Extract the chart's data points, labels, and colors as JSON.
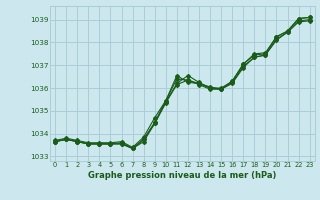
{
  "title": "Graphe pression niveau de la mer (hPa)",
  "bg_color": "#cce8ee",
  "grid_color": "#aacdd6",
  "line_color": "#1a5c1a",
  "xlim": [
    -0.5,
    23.5
  ],
  "ylim": [
    1032.8,
    1039.6
  ],
  "yticks": [
    1033,
    1034,
    1035,
    1036,
    1037,
    1038,
    1039
  ],
  "xticks": [
    0,
    1,
    2,
    3,
    4,
    5,
    6,
    7,
    8,
    9,
    10,
    11,
    12,
    13,
    14,
    15,
    16,
    17,
    18,
    19,
    20,
    21,
    22,
    23
  ],
  "series1_x": [
    0,
    1,
    2,
    3,
    4,
    5,
    6,
    7,
    8,
    9,
    10,
    11,
    12,
    13,
    14,
    15,
    16,
    17,
    18,
    19,
    20,
    21,
    22,
    23
  ],
  "series1_y": [
    1033.65,
    1033.75,
    1033.65,
    1033.55,
    1033.55,
    1033.55,
    1033.6,
    1033.35,
    1033.65,
    1034.45,
    1035.35,
    1036.15,
    1036.35,
    1036.15,
    1035.95,
    1035.95,
    1036.2,
    1036.9,
    1037.35,
    1037.45,
    1038.15,
    1038.45,
    1038.95,
    1039.0
  ],
  "series2_x": [
    0,
    1,
    2,
    3,
    4,
    5,
    6,
    7,
    8,
    9,
    10,
    11,
    12,
    13,
    14,
    15,
    16,
    17,
    18,
    19,
    20,
    21,
    22,
    23
  ],
  "series2_y": [
    1033.65,
    1033.75,
    1033.65,
    1033.55,
    1033.55,
    1033.55,
    1033.55,
    1033.35,
    1033.75,
    1034.5,
    1035.45,
    1036.55,
    1036.25,
    1036.2,
    1036.0,
    1036.0,
    1036.3,
    1037.05,
    1037.45,
    1037.5,
    1038.25,
    1038.5,
    1039.05,
    1039.1
  ],
  "series3_x": [
    0,
    1,
    2,
    3,
    4,
    5,
    6,
    7,
    8,
    9,
    10,
    11,
    12,
    13,
    14,
    15,
    16,
    17,
    18,
    19,
    20,
    21,
    22,
    23
  ],
  "series3_y": [
    1033.65,
    1033.75,
    1033.65,
    1033.55,
    1033.55,
    1033.55,
    1033.55,
    1033.35,
    1033.75,
    1034.45,
    1035.4,
    1036.2,
    1036.55,
    1036.25,
    1036.0,
    1035.95,
    1036.25,
    1036.95,
    1037.35,
    1037.45,
    1038.1,
    1038.45,
    1038.9,
    1038.95
  ],
  "series4_x": [
    0,
    1,
    2,
    3,
    4,
    5,
    6,
    7,
    8,
    9,
    10,
    11,
    12,
    13,
    14,
    15,
    16,
    17,
    18,
    19,
    20,
    21,
    22,
    23
  ],
  "series4_y": [
    1033.7,
    1033.8,
    1033.7,
    1033.6,
    1033.6,
    1033.6,
    1033.65,
    1033.4,
    1033.85,
    1034.7,
    1035.45,
    1036.4,
    1036.35,
    1036.2,
    1036.05,
    1035.95,
    1036.3,
    1037.05,
    1037.5,
    1037.55,
    1038.25,
    1038.5,
    1039.05,
    1039.1
  ]
}
